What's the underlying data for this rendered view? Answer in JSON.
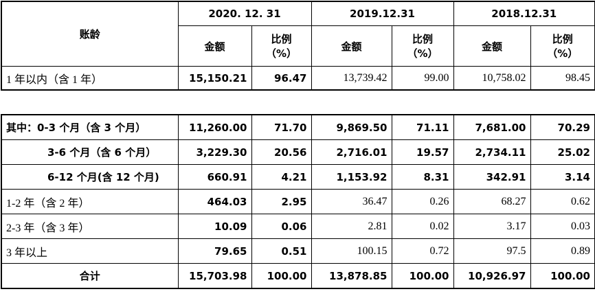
{
  "top_table": {
    "label_header": "账龄",
    "periods": [
      "2020. 12. 31",
      "2019.12.31",
      "2018.12.31"
    ],
    "sub_headers": [
      "金额",
      "比例\n（%）",
      "金额",
      "比例\n（%）",
      "金额",
      "比例\n（%）"
    ],
    "rows": [
      [
        "1 年以内（含 1 年）",
        "15,150.21",
        "96.47",
        "13,739.42",
        "99.00",
        "10,758.02",
        "98.45"
      ]
    ]
  },
  "bottom_table": {
    "rows": [
      [
        "其中：0-3 个月（含 3 个月）",
        "11,260.00",
        "71.70",
        "9,869.50",
        "71.11",
        "7,681.00",
        "70.29"
      ],
      [
        "3-6 个月（含 6 个月）",
        "3,229.30",
        "20.56",
        "2,716.01",
        "19.57",
        "2,734.11",
        "25.02"
      ],
      [
        "6-12 个月(含 12 个月)",
        "660.91",
        "4.21",
        "1,153.92",
        "8.31",
        "342.91",
        "3.14"
      ],
      [
        "1-2 年（含 2 年）",
        "464.03",
        "2.95",
        "36.47",
        "0.26",
        "68.27",
        "0.62"
      ],
      [
        "2-3 年（含 3 年）",
        "10.09",
        "0.06",
        "2.81",
        "0.02",
        "3.17",
        "0.03"
      ],
      [
        "3 年以上",
        "79.65",
        "0.51",
        "100.15",
        "0.72",
        "97.5",
        "0.89"
      ],
      [
        "合计",
        "15,703.98",
        "100.00",
        "13,878.85",
        "100.00",
        "10,926.97",
        "100.00"
      ]
    ]
  }
}
